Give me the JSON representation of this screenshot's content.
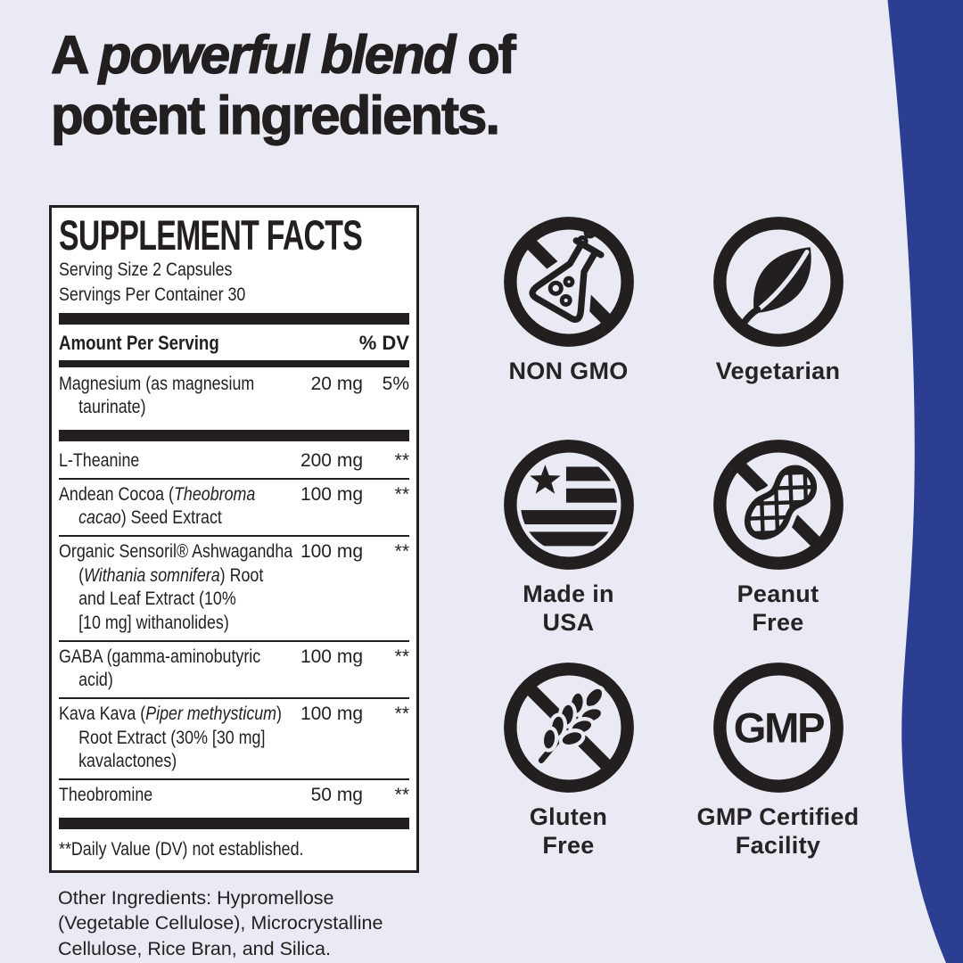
{
  "colors": {
    "bg": "#e9eaf3",
    "ink": "#231f20",
    "accent_blue": "#2b3e92",
    "panel_bg": "#ffffff"
  },
  "headline": {
    "prefix": "A ",
    "emphasis": "powerful blend",
    "suffix": " of",
    "line2": "potent ingredients."
  },
  "supplement_facts": {
    "title": "SUPPLEMENT FACTS",
    "serving_size": "Serving Size 2 Capsules",
    "servings_per_container": "Servings Per Container 30",
    "column_left": "Amount Per Serving",
    "column_right": "% DV",
    "rows": [
      {
        "lines": [
          [
            {
              "t": "Magnesium (as magnesium"
            }
          ],
          [
            {
              "t": "taurinate)"
            }
          ]
        ],
        "amount": "20 mg",
        "dv": "5%",
        "divider_after": "thick"
      },
      {
        "lines": [
          [
            {
              "t": "L-Theanine"
            }
          ]
        ],
        "amount": "200 mg",
        "dv": "**",
        "divider_after": "thin"
      },
      {
        "lines": [
          [
            {
              "t": "Andean Cocoa ("
            },
            {
              "t": "Theobroma",
              "i": true
            }
          ],
          [
            {
              "t": "cacao",
              "i": true
            },
            {
              "t": ") Seed Extract"
            }
          ]
        ],
        "amount": "100 mg",
        "dv": "**",
        "divider_after": "thin"
      },
      {
        "lines": [
          [
            {
              "t": "Organic Sensoril® Ashwagandha"
            }
          ],
          [
            {
              "t": "("
            },
            {
              "t": "Withania somnifera",
              "i": true
            },
            {
              "t": ") Root"
            }
          ],
          [
            {
              "t": "and Leaf Extract (10%"
            }
          ],
          [
            {
              "t": "[10 mg] withanolides)"
            }
          ]
        ],
        "amount": "100 mg",
        "dv": "**",
        "divider_after": "thin"
      },
      {
        "lines": [
          [
            {
              "t": "GABA (gamma-aminobutyric"
            }
          ],
          [
            {
              "t": "acid)"
            }
          ]
        ],
        "amount": "100 mg",
        "dv": "**",
        "divider_after": "thin"
      },
      {
        "lines": [
          [
            {
              "t": "Kava Kava ("
            },
            {
              "t": "Piper methysticum",
              "i": true
            },
            {
              "t": ")"
            }
          ],
          [
            {
              "t": "Root Extract (30% [30 mg]"
            }
          ],
          [
            {
              "t": "kavalactones)"
            }
          ]
        ],
        "amount": "100 mg",
        "dv": "**",
        "divider_after": "thin"
      },
      {
        "lines": [
          [
            {
              "t": "Theobromine"
            }
          ]
        ],
        "amount": "50 mg",
        "dv": "**",
        "divider_after": "thick"
      }
    ],
    "footnote": "**Daily Value (DV) not established."
  },
  "other_ingredients": "Other Ingredients: Hypromellose (Vegetable Cellulose), Microcrystalline Cellulose, Rice Bran, and Silica.",
  "badges": [
    {
      "icon": "non-gmo-flask-icon",
      "line1": "NON GMO"
    },
    {
      "icon": "vegetarian-leaf-icon",
      "line1": "Vegetarian"
    },
    {
      "icon": "made-in-usa-flag-icon",
      "line1": "Made in",
      "line2": "USA"
    },
    {
      "icon": "peanut-free-icon",
      "line1": "Peanut",
      "line2": "Free"
    },
    {
      "icon": "gluten-free-wheat-icon",
      "line1": "Gluten",
      "line2": "Free"
    },
    {
      "icon": "gmp-certified-icon",
      "line1": "GMP Certified",
      "line2": "Facility",
      "icon_text": "GMP"
    }
  ]
}
